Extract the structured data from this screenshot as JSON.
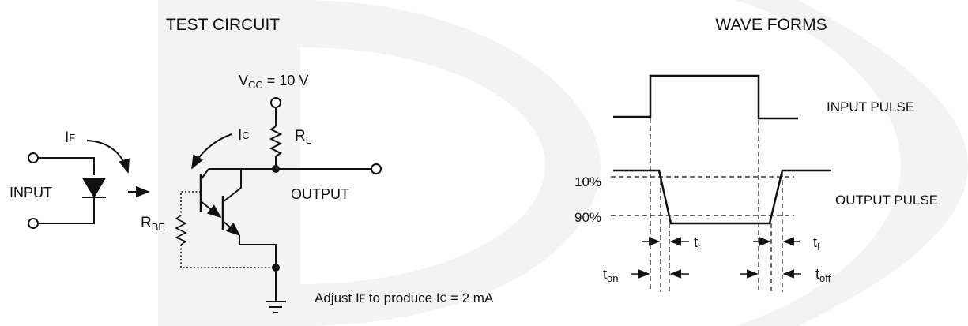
{
  "titles": {
    "left": "TEST CIRCUIT",
    "right": "WAVE FORMS"
  },
  "circuit": {
    "vcc_main": "V",
    "vcc_sub": "CC",
    "vcc_value": " = 10 V",
    "rl_main": "R",
    "rl_sub": "L",
    "ic_main": "I",
    "ic_sub": "C",
    "if_main": "I",
    "if_sub": "F",
    "rbe_main": "R",
    "rbe_sub": "BE",
    "input_label": "INPUT",
    "output_label": "OUTPUT",
    "note_prefix": "Adjust I",
    "note_if_sub": "F",
    "note_middle": " to produce I",
    "note_ic_sub": "C",
    "note_suffix": " = 2 mA"
  },
  "waveforms": {
    "input_pulse": "INPUT PULSE",
    "output_pulse": "OUTPUT PULSE",
    "level_10": "10%",
    "level_90": "90%",
    "tr_main": "t",
    "tr_sub": "r",
    "tf_main": "t",
    "tf_sub": "f",
    "ton_main": "t",
    "ton_sub": "on",
    "toff_main": "t",
    "toff_sub": "off"
  },
  "colors": {
    "background": "#ffffff",
    "watermark": "#f3f3f3",
    "ink": "#111111"
  }
}
